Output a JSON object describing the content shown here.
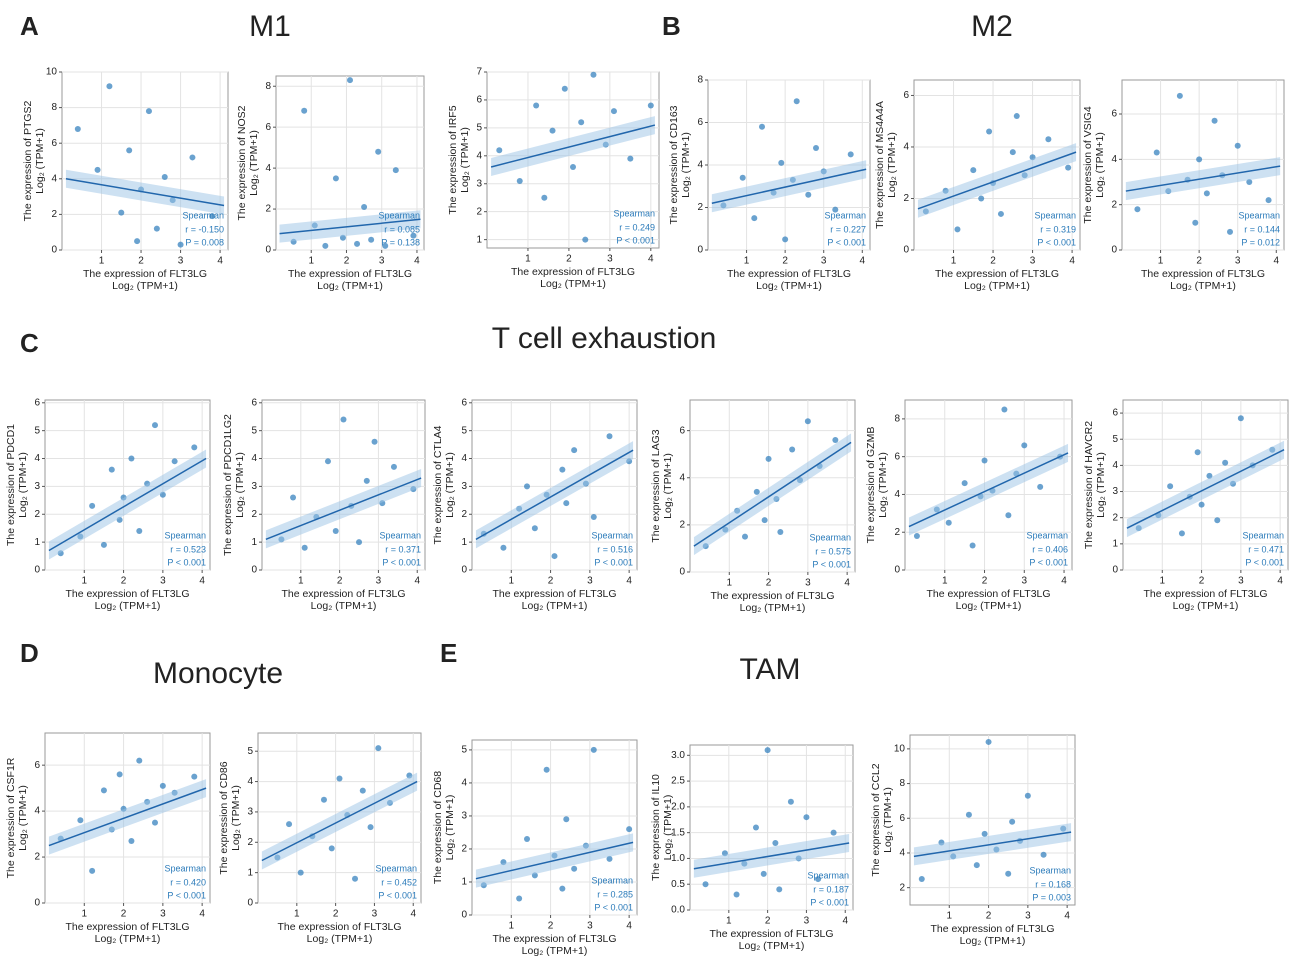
{
  "figure": {
    "panels": [
      {
        "letter": "A",
        "title": "M1"
      },
      {
        "letter": "B",
        "title": "M2"
      },
      {
        "letter": "C",
        "title": "T cell exhaustion"
      },
      {
        "letter": "D",
        "title": "Monocyte"
      },
      {
        "letter": "E",
        "title": "TAM"
      }
    ]
  },
  "chart_data": [
    {
      "type": "scatter",
      "ylabel": "The expression of PTGS2",
      "ylabel_unit": "Log₂ (TPM+1)",
      "xlabel": "The expression of FLT3LG",
      "xlabel_unit": "Log₂ (TPM+1)",
      "method": "Spearman",
      "r_label": "r = -0.150",
      "p_label": "P = 0.008",
      "color": "#2b7bba",
      "grid": true,
      "xlim": [
        0,
        4.2
      ],
      "xticks": [
        1,
        2,
        3,
        4
      ],
      "ylim": [
        0,
        10
      ],
      "yticks": [
        0,
        2,
        4,
        6,
        8,
        10
      ],
      "x": [
        0.4,
        0.9,
        1.2,
        1.5,
        1.7,
        1.9,
        2.0,
        2.2,
        2.4,
        2.6,
        2.8,
        3.0,
        3.3,
        3.8
      ],
      "y": [
        6.8,
        4.5,
        9.2,
        2.1,
        5.6,
        0.5,
        3.4,
        7.8,
        1.2,
        4.1,
        2.8,
        0.3,
        5.2,
        1.9
      ],
      "fit": {
        "x": [
          0.1,
          4.1
        ],
        "y": [
          4.0,
          2.5
        ]
      }
    },
    {
      "type": "scatter",
      "ylabel": "The expression of NOS2",
      "ylabel_unit": "Log₂ (TPM+1)",
      "xlabel": "The expression of FLT3LG",
      "xlabel_unit": "Log₂ (TPM+1)",
      "method": "Spearman",
      "r_label": "r = 0.085",
      "p_label": "P = 0.138",
      "color": "#2b7bba",
      "grid": true,
      "xlim": [
        0,
        4.2
      ],
      "xticks": [
        1,
        2,
        3,
        4
      ],
      "ylim": [
        0,
        8.5
      ],
      "yticks": [
        0,
        2,
        4,
        6,
        8
      ],
      "x": [
        0.5,
        0.8,
        1.1,
        1.4,
        1.7,
        1.9,
        2.1,
        2.3,
        2.5,
        2.7,
        2.9,
        3.1,
        3.4,
        3.9
      ],
      "y": [
        0.4,
        6.8,
        1.2,
        0.2,
        3.5,
        0.6,
        8.3,
        0.3,
        2.1,
        0.5,
        4.8,
        0.2,
        3.9,
        0.7
      ],
      "fit": {
        "x": [
          0.1,
          4.1
        ],
        "y": [
          0.8,
          1.5
        ]
      }
    },
    {
      "type": "scatter",
      "ylabel": "The expression of IRF5",
      "ylabel_unit": "Log₂ (TPM+1)",
      "xlabel": "The expression of FLT3LG",
      "xlabel_unit": "Log₂ (TPM+1)",
      "method": "Spearman",
      "r_label": "r = 0.249",
      "p_label": "P < 0.001",
      "color": "#2b7bba",
      "grid": true,
      "xlim": [
        0,
        4.2
      ],
      "xticks": [
        1,
        2,
        3,
        4
      ],
      "ylim": [
        0.7,
        7
      ],
      "yticks": [
        1,
        2,
        3,
        4,
        5,
        6,
        7
      ],
      "x": [
        0.3,
        0.8,
        1.2,
        1.4,
        1.6,
        1.9,
        2.1,
        2.3,
        2.4,
        2.6,
        2.9,
        3.1,
        3.5,
        4.0
      ],
      "y": [
        4.2,
        3.1,
        5.8,
        2.5,
        4.9,
        6.4,
        3.6,
        5.2,
        1.0,
        6.9,
        4.4,
        5.6,
        3.9,
        5.8
      ],
      "fit": {
        "x": [
          0.1,
          4.1
        ],
        "y": [
          3.6,
          5.1
        ]
      }
    },
    {
      "type": "scatter",
      "ylabel": "The expression of CD163",
      "ylabel_unit": "Log₂ (TPM+1)",
      "xlabel": "The expression of FLT3LG",
      "xlabel_unit": "Log₂ (TPM+1)",
      "method": "Spearman",
      "r_label": "r = 0.227",
      "p_label": "P < 0.001",
      "color": "#2b7bba",
      "grid": true,
      "xlim": [
        0,
        4.2
      ],
      "xticks": [
        1,
        2,
        3,
        4
      ],
      "ylim": [
        0,
        8
      ],
      "yticks": [
        0,
        2,
        4,
        6,
        8
      ],
      "x": [
        0.4,
        0.9,
        1.2,
        1.4,
        1.7,
        1.9,
        2.0,
        2.2,
        2.3,
        2.6,
        2.8,
        3.0,
        3.3,
        3.7
      ],
      "y": [
        2.1,
        3.4,
        1.5,
        5.8,
        2.7,
        4.1,
        0.5,
        3.3,
        7.0,
        2.6,
        4.8,
        3.7,
        1.9,
        4.5
      ],
      "fit": {
        "x": [
          0.1,
          4.1
        ],
        "y": [
          2.2,
          3.8
        ]
      }
    },
    {
      "type": "scatter",
      "ylabel": "The expression of MS4A4A",
      "ylabel_unit": "Log₂ (TPM+1)",
      "xlabel": "The expression of FLT3LG",
      "xlabel_unit": "Log₂ (TPM+1)",
      "method": "Spearman",
      "r_label": "r = 0.319",
      "p_label": "P < 0.001",
      "color": "#2b7bba",
      "grid": true,
      "xlim": [
        0,
        4.2
      ],
      "xticks": [
        1,
        2,
        3,
        4
      ],
      "ylim": [
        0,
        6.6
      ],
      "yticks": [
        0,
        2,
        4,
        6
      ],
      "x": [
        0.3,
        0.8,
        1.1,
        1.5,
        1.7,
        1.9,
        2.0,
        2.2,
        2.5,
        2.6,
        2.8,
        3.0,
        3.4,
        3.9
      ],
      "y": [
        1.5,
        2.3,
        0.8,
        3.1,
        2.0,
        4.6,
        2.6,
        1.4,
        3.8,
        5.2,
        2.9,
        3.6,
        4.3,
        3.2
      ],
      "fit": {
        "x": [
          0.1,
          4.1
        ],
        "y": [
          1.6,
          3.8
        ]
      }
    },
    {
      "type": "scatter",
      "ylabel": "The expression of VSIG4",
      "ylabel_unit": "Log₂ (TPM+1)",
      "xlabel": "The expression of FLT3LG",
      "xlabel_unit": "Log₂ (TPM+1)",
      "method": "Spearman",
      "r_label": "r = 0.144",
      "p_label": "P = 0.012",
      "color": "#2b7bba",
      "grid": true,
      "xlim": [
        0,
        4.2
      ],
      "xticks": [
        1,
        2,
        3,
        4
      ],
      "ylim": [
        0,
        7.5
      ],
      "yticks": [
        0,
        2,
        4,
        6
      ],
      "x": [
        0.4,
        0.9,
        1.2,
        1.5,
        1.7,
        1.9,
        2.0,
        2.2,
        2.4,
        2.6,
        2.8,
        3.0,
        3.3,
        3.8
      ],
      "y": [
        1.8,
        4.3,
        2.6,
        6.8,
        3.1,
        1.2,
        4.0,
        2.5,
        5.7,
        3.3,
        0.8,
        4.6,
        3.0,
        2.2
      ],
      "fit": {
        "x": [
          0.1,
          4.1
        ],
        "y": [
          2.6,
          3.7
        ]
      }
    },
    {
      "type": "scatter",
      "ylabel": "The expression of PDCD1",
      "ylabel_unit": "Log₂ (TPM+1)",
      "xlabel": "The expression of FLT3LG",
      "xlabel_unit": "Log₂ (TPM+1)",
      "method": "Spearman",
      "r_label": "r = 0.523",
      "p_label": "P < 0.001",
      "color": "#2b7bba",
      "grid": true,
      "xlim": [
        0,
        4.2
      ],
      "xticks": [
        1,
        2,
        3,
        4
      ],
      "ylim": [
        0,
        6.1
      ],
      "yticks": [
        0,
        1,
        2,
        3,
        4,
        5,
        6
      ],
      "x": [
        0.4,
        0.9,
        1.2,
        1.5,
        1.7,
        1.9,
        2.0,
        2.2,
        2.4,
        2.6,
        2.8,
        3.0,
        3.3,
        3.8
      ],
      "y": [
        0.6,
        1.2,
        2.3,
        0.9,
        3.6,
        1.8,
        2.6,
        4.0,
        1.4,
        3.1,
        5.2,
        2.7,
        3.9,
        4.4
      ],
      "fit": {
        "x": [
          0.1,
          4.1
        ],
        "y": [
          0.7,
          4.0
        ]
      }
    },
    {
      "type": "scatter",
      "ylabel": "The expression of PDCD1LG2",
      "ylabel_unit": "Log₂ (TPM+1)",
      "xlabel": "The expression of FLT3LG",
      "xlabel_unit": "Log₂ (TPM+1)",
      "method": "Spearman",
      "r_label": "r = 0.371",
      "p_label": "P < 0.001",
      "color": "#2b7bba",
      "grid": true,
      "xlim": [
        0,
        4.2
      ],
      "xticks": [
        1,
        2,
        3,
        4
      ],
      "ylim": [
        0,
        6.1
      ],
      "yticks": [
        0,
        1,
        2,
        3,
        4,
        5,
        6
      ],
      "x": [
        0.5,
        0.8,
        1.1,
        1.4,
        1.7,
        1.9,
        2.1,
        2.3,
        2.5,
        2.7,
        2.9,
        3.1,
        3.4,
        3.9
      ],
      "y": [
        1.1,
        2.6,
        0.8,
        1.9,
        3.9,
        1.4,
        5.4,
        2.3,
        1.0,
        3.2,
        4.6,
        2.4,
        3.7,
        2.9
      ],
      "fit": {
        "x": [
          0.1,
          4.1
        ],
        "y": [
          1.1,
          3.3
        ]
      }
    },
    {
      "type": "scatter",
      "ylabel": "The expression of CTLA4",
      "ylabel_unit": "Log₂ (TPM+1)",
      "xlabel": "The expression of FLT3LG",
      "xlabel_unit": "Log₂ (TPM+1)",
      "method": "Spearman",
      "r_label": "r = 0.516",
      "p_label": "P < 0.001",
      "color": "#2b7bba",
      "grid": true,
      "xlim": [
        0,
        4.2
      ],
      "xticks": [
        1,
        2,
        3,
        4
      ],
      "ylim": [
        0,
        6.1
      ],
      "yticks": [
        0,
        1,
        2,
        3,
        4,
        5,
        6
      ],
      "x": [
        0.3,
        0.8,
        1.2,
        1.4,
        1.6,
        1.9,
        2.1,
        2.3,
        2.4,
        2.6,
        2.9,
        3.1,
        3.5,
        4.0
      ],
      "y": [
        1.3,
        0.8,
        2.2,
        3.0,
        1.5,
        2.7,
        0.5,
        3.6,
        2.4,
        4.3,
        3.1,
        1.9,
        4.8,
        3.9
      ],
      "fit": {
        "x": [
          0.1,
          4.1
        ],
        "y": [
          1.1,
          4.3
        ]
      }
    },
    {
      "type": "scatter",
      "ylabel": "The expression of LAG3",
      "ylabel_unit": "Log₂ (TPM+1)",
      "xlabel": "The expression of FLT3LG",
      "xlabel_unit": "Log₂ (TPM+1)",
      "method": "Spearman",
      "r_label": "r = 0.575",
      "p_label": "P < 0.001",
      "color": "#2b7bba",
      "grid": true,
      "xlim": [
        0,
        4.2
      ],
      "xticks": [
        1,
        2,
        3,
        4
      ],
      "ylim": [
        0,
        7.3
      ],
      "yticks": [
        0,
        2,
        4,
        6
      ],
      "x": [
        0.4,
        0.9,
        1.2,
        1.4,
        1.7,
        1.9,
        2.0,
        2.2,
        2.3,
        2.6,
        2.8,
        3.0,
        3.3,
        3.7
      ],
      "y": [
        1.1,
        1.8,
        2.6,
        1.5,
        3.4,
        2.2,
        4.8,
        3.1,
        1.7,
        5.2,
        3.9,
        6.4,
        4.5,
        5.6
      ],
      "fit": {
        "x": [
          0.1,
          4.1
        ],
        "y": [
          1.1,
          5.5
        ]
      }
    },
    {
      "type": "scatter",
      "ylabel": "The expression of GZMB",
      "ylabel_unit": "Log₂ (TPM+1)",
      "xlabel": "The expression of FLT3LG",
      "xlabel_unit": "Log₂ (TPM+1)",
      "method": "Spearman",
      "r_label": "r = 0.406",
      "p_label": "P < 0.001",
      "color": "#2b7bba",
      "grid": true,
      "xlim": [
        0,
        4.2
      ],
      "xticks": [
        1,
        2,
        3,
        4
      ],
      "ylim": [
        0,
        9
      ],
      "yticks": [
        0,
        2,
        4,
        6,
        8
      ],
      "x": [
        0.3,
        0.8,
        1.1,
        1.5,
        1.7,
        1.9,
        2.0,
        2.2,
        2.5,
        2.6,
        2.8,
        3.0,
        3.4,
        3.9
      ],
      "y": [
        1.8,
        3.2,
        2.5,
        4.6,
        1.3,
        3.9,
        5.8,
        4.2,
        8.5,
        2.9,
        5.1,
        6.6,
        4.4,
        6.0
      ],
      "fit": {
        "x": [
          0.1,
          4.1
        ],
        "y": [
          2.3,
          6.2
        ]
      }
    },
    {
      "type": "scatter",
      "ylabel": "The expression of HAVCR2",
      "ylabel_unit": "Log₂ (TPM+1)",
      "xlabel": "The expression of FLT3LG",
      "xlabel_unit": "Log₂ (TPM+1)",
      "method": "Spearman",
      "r_label": "r = 0.471",
      "p_label": "P < 0.001",
      "color": "#2b7bba",
      "grid": true,
      "xlim": [
        0,
        4.2
      ],
      "xticks": [
        1,
        2,
        3,
        4
      ],
      "ylim": [
        0,
        6.5
      ],
      "yticks": [
        0,
        1,
        2,
        3,
        4,
        5,
        6
      ],
      "x": [
        0.4,
        0.9,
        1.2,
        1.5,
        1.7,
        1.9,
        2.0,
        2.2,
        2.4,
        2.6,
        2.8,
        3.0,
        3.3,
        3.8
      ],
      "y": [
        1.6,
        2.1,
        3.2,
        1.4,
        2.8,
        4.5,
        2.5,
        3.6,
        1.9,
        4.1,
        3.3,
        5.8,
        4.0,
        4.6
      ],
      "fit": {
        "x": [
          0.1,
          4.1
        ],
        "y": [
          1.6,
          4.6
        ]
      }
    },
    {
      "type": "scatter",
      "ylabel": "The expression of CSF1R",
      "ylabel_unit": "Log₂ (TPM+1)",
      "xlabel": "The expression of FLT3LG",
      "xlabel_unit": "Log₂ (TPM+1)",
      "method": "Spearman",
      "r_label": "r = 0.420",
      "p_label": "P < 0.001",
      "color": "#2b7bba",
      "grid": true,
      "xlim": [
        0,
        4.2
      ],
      "xticks": [
        1,
        2,
        3,
        4
      ],
      "ylim": [
        0,
        7.4
      ],
      "yticks": [
        0,
        2,
        4,
        6
      ],
      "x": [
        0.4,
        0.9,
        1.2,
        1.5,
        1.7,
        1.9,
        2.0,
        2.2,
        2.4,
        2.6,
        2.8,
        3.0,
        3.3,
        3.8
      ],
      "y": [
        2.8,
        3.6,
        1.4,
        4.9,
        3.2,
        5.6,
        4.1,
        2.7,
        6.2,
        4.4,
        3.5,
        5.1,
        4.8,
        5.5
      ],
      "fit": {
        "x": [
          0.1,
          4.1
        ],
        "y": [
          2.5,
          5.0
        ]
      }
    },
    {
      "type": "scatter",
      "ylabel": "The expression of CD86",
      "ylabel_unit": "Log₂ (TPM+1)",
      "xlabel": "The expression of FLT3LG",
      "xlabel_unit": "Log₂ (TPM+1)",
      "method": "Spearman",
      "r_label": "r = 0.452",
      "p_label": "P < 0.001",
      "color": "#2b7bba",
      "grid": true,
      "xlim": [
        0,
        4.2
      ],
      "xticks": [
        1,
        2,
        3,
        4
      ],
      "ylim": [
        0,
        5.6
      ],
      "yticks": [
        0,
        1,
        2,
        3,
        4,
        5
      ],
      "x": [
        0.5,
        0.8,
        1.1,
        1.4,
        1.7,
        1.9,
        2.1,
        2.3,
        2.5,
        2.7,
        2.9,
        3.1,
        3.4,
        3.9
      ],
      "y": [
        1.5,
        2.6,
        1.0,
        2.2,
        3.4,
        1.8,
        4.1,
        2.9,
        0.8,
        3.7,
        2.5,
        5.1,
        3.3,
        4.2
      ],
      "fit": {
        "x": [
          0.1,
          4.1
        ],
        "y": [
          1.4,
          4.0
        ]
      }
    },
    {
      "type": "scatter",
      "ylabel": "The expression of CD68",
      "ylabel_unit": "Log₂ (TPM+1)",
      "xlabel": "The expression of FLT3LG",
      "xlabel_unit": "Log₂ (TPM+1)",
      "method": "Spearman",
      "r_label": "r = 0.285",
      "p_label": "P < 0.001",
      "color": "#2b7bba",
      "grid": true,
      "xlim": [
        0,
        4.2
      ],
      "xticks": [
        1,
        2,
        3,
        4
      ],
      "ylim": [
        0,
        5.3
      ],
      "yticks": [
        0,
        1,
        2,
        3,
        4,
        5
      ],
      "x": [
        0.3,
        0.8,
        1.2,
        1.4,
        1.6,
        1.9,
        2.1,
        2.3,
        2.4,
        2.6,
        2.9,
        3.1,
        3.5,
        4.0
      ],
      "y": [
        0.9,
        1.6,
        0.5,
        2.3,
        1.2,
        4.4,
        1.8,
        0.8,
        2.9,
        1.4,
        2.1,
        5.0,
        1.7,
        2.6
      ],
      "fit": {
        "x": [
          0.1,
          4.1
        ],
        "y": [
          1.1,
          2.2
        ]
      }
    },
    {
      "type": "scatter",
      "ylabel": "The expression of IL10",
      "ylabel_unit": "Log₂ (TPM+1)",
      "xlabel": "The expression of FLT3LG",
      "xlabel_unit": "Log₂ (TPM+1)",
      "method": "Spearman",
      "r_label": "r = 0.187",
      "p_label": "P < 0.001",
      "color": "#2b7bba",
      "grid": true,
      "xlim": [
        0,
        4.2
      ],
      "xticks": [
        1,
        2,
        3,
        4
      ],
      "ylim": [
        0,
        3.2
      ],
      "yticks": [
        {
          "value": 0,
          "label": "0.0"
        },
        0.5,
        {
          "value": 1,
          "label": "1.0"
        },
        1.5,
        {
          "value": 2,
          "label": "2.0"
        },
        2.5,
        {
          "value": 3,
          "label": "3.0"
        }
      ],
      "x": [
        0.4,
        0.9,
        1.2,
        1.4,
        1.7,
        1.9,
        2.0,
        2.2,
        2.3,
        2.6,
        2.8,
        3.0,
        3.3,
        3.7
      ],
      "y": [
        0.5,
        1.1,
        0.3,
        0.9,
        1.6,
        0.7,
        3.1,
        1.3,
        0.4,
        2.1,
        1.0,
        1.8,
        0.6,
        1.5
      ],
      "fit": {
        "x": [
          0.1,
          4.1
        ],
        "y": [
          0.8,
          1.3
        ]
      }
    },
    {
      "type": "scatter",
      "ylabel": "The expression of CCL2",
      "ylabel_unit": "Log₂ (TPM+1)",
      "xlabel": "The expression of FLT3LG",
      "xlabel_unit": "Log₂ (TPM+1)",
      "method": "Spearman",
      "r_label": "r = 0.168",
      "p_label": "P = 0.003",
      "color": "#2b7bba",
      "grid": true,
      "xlim": [
        0,
        4.2
      ],
      "xticks": [
        1,
        2,
        3,
        4
      ],
      "ylim": [
        1,
        10.8
      ],
      "yticks": [
        2,
        4,
        6,
        8,
        10
      ],
      "x": [
        0.3,
        0.8,
        1.1,
        1.5,
        1.7,
        1.9,
        2.0,
        2.2,
        2.5,
        2.6,
        2.8,
        3.0,
        3.4,
        3.9
      ],
      "y": [
        2.5,
        4.6,
        3.8,
        6.2,
        3.3,
        5.1,
        10.4,
        4.2,
        2.8,
        5.8,
        4.7,
        7.3,
        3.9,
        5.4
      ],
      "fit": {
        "x": [
          0.1,
          4.1
        ],
        "y": [
          3.8,
          5.2
        ]
      }
    }
  ]
}
